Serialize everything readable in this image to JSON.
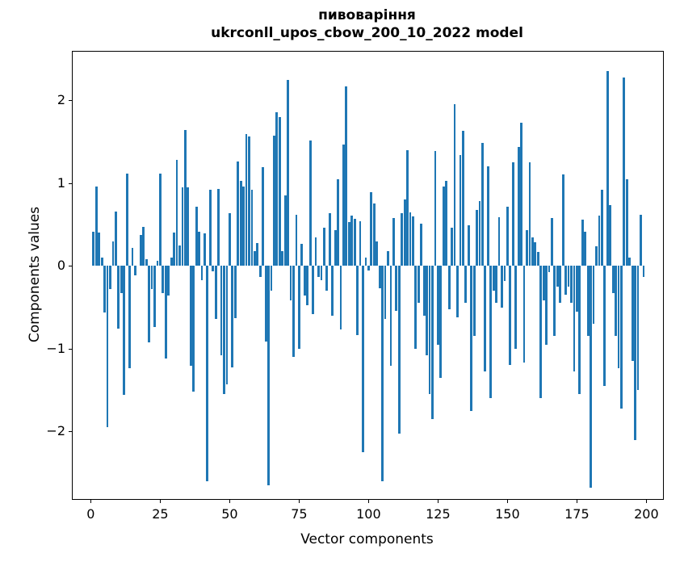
{
  "title": {
    "line1": "пивоваріння",
    "line2": "ukrconll_upos_cbow_200_10_2022 model"
  },
  "chart_data": {
    "type": "bar",
    "title": "пивоваріння — ukrconll_upos_cbow_200_10_2022 model",
    "xlabel": "Vector components",
    "ylabel": "Components values",
    "legend": null,
    "grid": false,
    "bar_color": "#1f77b4",
    "n_components": 200,
    "x_ticks": [
      0,
      25,
      50,
      75,
      100,
      125,
      150,
      175,
      200
    ],
    "y_ticks": [
      2,
      1,
      0,
      -1,
      -2
    ],
    "xlim": [
      -10,
      209
    ],
    "ylim": [
      -2.93,
      2.6
    ],
    "values": [
      0.0,
      0.41,
      0.96,
      0.4,
      0.1,
      -0.56,
      -1.95,
      -0.28,
      0.3,
      0.66,
      -0.76,
      -0.33,
      -1.56,
      1.12,
      -1.24,
      0.22,
      -0.11,
      0.0,
      0.37,
      0.47,
      0.08,
      -0.92,
      -0.28,
      -0.74,
      0.06,
      1.12,
      -0.33,
      -1.12,
      -0.36,
      0.1,
      0.4,
      1.28,
      0.25,
      0.95,
      1.64,
      0.95,
      -1.21,
      -1.52,
      0.72,
      0.41,
      -0.17,
      0.39,
      -2.6,
      0.92,
      -0.07,
      -0.64,
      0.93,
      -1.08,
      -1.55,
      -1.43,
      0.64,
      -1.23,
      -0.63,
      1.26,
      1.03,
      0.96,
      1.59,
      1.56,
      0.92,
      0.18,
      0.28,
      -0.13,
      1.19,
      -0.91,
      -2.65,
      -0.3,
      1.57,
      1.86,
      1.8,
      0.18,
      0.85,
      2.25,
      -0.42,
      -1.1,
      0.62,
      -1.0,
      0.27,
      -0.36,
      -0.48,
      1.52,
      -0.58,
      0.34,
      -0.13,
      -0.17,
      0.46,
      -0.3,
      0.64,
      -0.6,
      0.43,
      1.05,
      -0.77,
      1.47,
      2.17,
      0.53,
      0.61,
      0.57,
      -0.84,
      0.54,
      -2.25,
      0.1,
      -0.06,
      0.89,
      0.75,
      0.3,
      -0.27,
      -2.6,
      -0.64,
      0.18,
      -1.21,
      0.58,
      -0.54,
      -2.03,
      0.64,
      0.8,
      1.4,
      0.65,
      0.6,
      -1.0,
      -0.45,
      0.51,
      -0.6,
      -1.08,
      -1.55,
      -1.85,
      1.39,
      -0.95,
      -1.35,
      0.96,
      1.03,
      -0.52,
      0.46,
      1.95,
      -0.62,
      1.34,
      1.63,
      -0.45,
      0.49,
      -1.75,
      -0.85,
      0.68,
      0.78,
      1.49,
      -1.28,
      1.2,
      -1.6,
      -0.3,
      -0.45,
      0.59,
      -0.5,
      -0.18,
      0.72,
      -1.2,
      1.25,
      -1.0,
      1.44,
      1.73,
      -1.17,
      0.43,
      1.25,
      0.34,
      0.29,
      0.17,
      -1.6,
      -0.42,
      -0.95,
      -0.08,
      0.58,
      -0.85,
      -0.25,
      -0.45,
      1.11,
      -0.35,
      -0.25,
      -0.45,
      -1.28,
      -0.55,
      -1.55,
      0.56,
      0.41,
      -0.85,
      -2.68,
      -0.7,
      0.24,
      0.61,
      0.92,
      -1.45,
      2.35,
      0.73,
      -0.33,
      -0.85,
      -1.24,
      -1.72,
      2.28,
      1.05,
      0.1,
      -1.15,
      -2.1,
      -1.5,
      0.62,
      -0.13
    ]
  }
}
